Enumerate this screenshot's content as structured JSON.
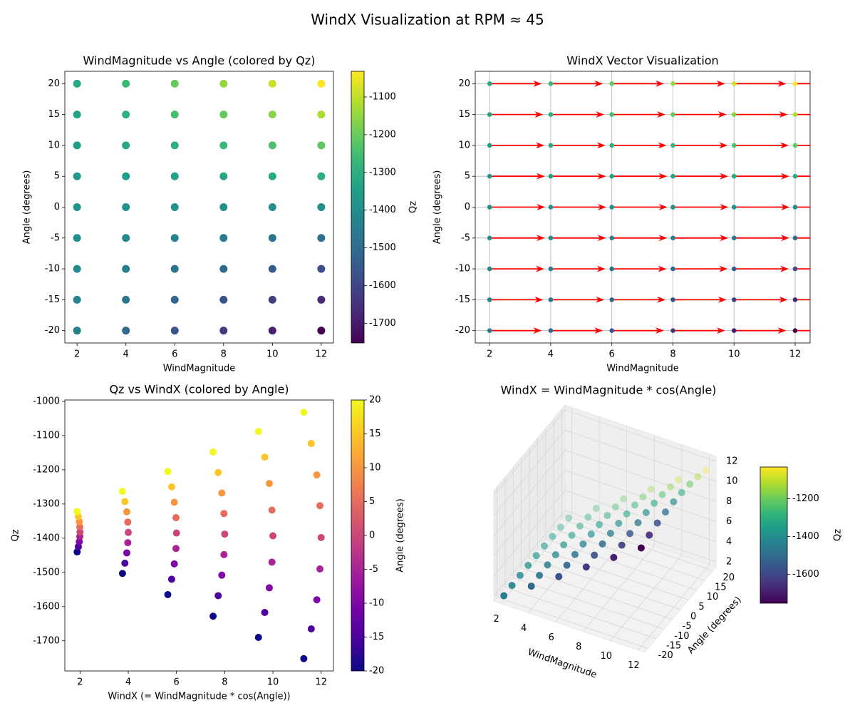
{
  "title": "WindX Visualization at RPM ≈ 45",
  "chart_data": [
    {
      "type": "scatter",
      "title": "WindMagnitude vs Angle (colored by Qz)",
      "xlabel": "WindMagnitude",
      "ylabel": "Angle (degrees)",
      "magnitudes": [
        2,
        4,
        6,
        8,
        10,
        12
      ],
      "angles": [
        -20,
        -15,
        -10,
        -5,
        0,
        5,
        10,
        15,
        20
      ],
      "qz": [
        [
          -1440,
          -1425,
          -1410,
          -1395,
          -1382,
          -1367,
          -1352,
          -1337,
          -1322
        ],
        [
          -1503,
          -1473,
          -1443,
          -1413,
          -1383,
          -1353,
          -1323,
          -1293,
          -1263
        ],
        [
          -1565,
          -1520,
          -1475,
          -1430,
          -1385,
          -1340,
          -1295,
          -1250,
          -1205
        ],
        [
          -1628,
          -1568,
          -1508,
          -1448,
          -1388,
          -1328,
          -1268,
          -1208,
          -1148
        ],
        [
          -1690,
          -1617,
          -1545,
          -1470,
          -1393,
          -1318,
          -1240,
          -1163,
          -1088
        ],
        [
          -1752,
          -1665,
          -1580,
          -1490,
          -1398,
          -1305,
          -1215,
          -1123,
          -1032
        ]
      ],
      "cmap": "viridis",
      "clim": [
        -1752,
        -1032
      ],
      "cticks": [
        -1700,
        -1600,
        -1500,
        -1400,
        -1300,
        -1200,
        -1100
      ],
      "colorbar_label": "Qz",
      "xlim": [
        1.5,
        12.5
      ],
      "xticks": [
        2,
        4,
        6,
        8,
        10,
        12
      ],
      "ylim": [
        -22,
        22
      ],
      "yticks": [
        -20,
        -15,
        -10,
        -5,
        0,
        5,
        10,
        15,
        20
      ]
    },
    {
      "type": "quiver",
      "title": "WindX Vector Visualization",
      "xlabel": "WindMagnitude",
      "ylabel": "Angle (degrees)",
      "magnitudes": [
        2,
        4,
        6,
        8,
        10,
        12
      ],
      "angles": [
        -20,
        -15,
        -10,
        -5,
        0,
        5,
        10,
        15,
        20
      ],
      "windx": [
        [
          1.88,
          1.93,
          1.97,
          1.99,
          2,
          1.99,
          1.97,
          1.93,
          1.88
        ],
        [
          3.76,
          3.86,
          3.94,
          3.98,
          4,
          3.98,
          3.94,
          3.86,
          3.76
        ],
        [
          5.64,
          5.8,
          5.91,
          5.98,
          6,
          5.98,
          5.91,
          5.8,
          5.64
        ],
        [
          7.52,
          7.73,
          7.88,
          7.97,
          8,
          7.97,
          7.88,
          7.73,
          7.52
        ],
        [
          9.4,
          9.66,
          9.85,
          9.96,
          10,
          9.96,
          9.85,
          9.66,
          9.4
        ],
        [
          11.28,
          11.59,
          11.82,
          11.95,
          12,
          11.95,
          11.82,
          11.59,
          11.28
        ]
      ],
      "qz": [
        [
          -1440,
          -1425,
          -1410,
          -1395,
          -1382,
          -1367,
          -1352,
          -1337,
          -1322
        ],
        [
          -1503,
          -1473,
          -1443,
          -1413,
          -1383,
          -1353,
          -1323,
          -1293,
          -1263
        ],
        [
          -1565,
          -1520,
          -1475,
          -1430,
          -1385,
          -1340,
          -1295,
          -1250,
          -1205
        ],
        [
          -1628,
          -1568,
          -1508,
          -1448,
          -1388,
          -1328,
          -1268,
          -1208,
          -1148
        ],
        [
          -1690,
          -1617,
          -1545,
          -1470,
          -1393,
          -1318,
          -1240,
          -1163,
          -1088
        ],
        [
          -1752,
          -1665,
          -1580,
          -1490,
          -1398,
          -1305,
          -1215,
          -1123,
          -1032
        ]
      ],
      "cmap": "viridis",
      "clim": [
        -1752,
        -1032
      ],
      "arrow_color": "#ff0000",
      "grid": true,
      "xlim": [
        1.53,
        12.49
      ],
      "xticks": [
        2,
        4,
        6,
        8,
        10,
        12
      ],
      "ylim": [
        -22,
        22
      ],
      "yticks": [
        -20,
        -15,
        -10,
        -5,
        0,
        5,
        10,
        15,
        20
      ]
    },
    {
      "type": "scatter",
      "title": "Qz vs WindX (colored by Angle)",
      "xlabel": "WindX (= WindMagnitude * cos(Angle))",
      "ylabel": "Qz",
      "angles": [
        -20,
        -15,
        -10,
        -5,
        0,
        5,
        10,
        15,
        20
      ],
      "windx": [
        [
          1.88,
          1.93,
          1.97,
          1.99,
          2,
          1.99,
          1.97,
          1.93,
          1.88
        ],
        [
          3.76,
          3.86,
          3.94,
          3.98,
          4,
          3.98,
          3.94,
          3.86,
          3.76
        ],
        [
          5.64,
          5.8,
          5.91,
          5.98,
          6,
          5.98,
          5.91,
          5.8,
          5.64
        ],
        [
          7.52,
          7.73,
          7.88,
          7.97,
          8,
          7.97,
          7.88,
          7.73,
          7.52
        ],
        [
          9.4,
          9.66,
          9.85,
          9.96,
          10,
          9.96,
          9.85,
          9.66,
          9.4
        ],
        [
          11.28,
          11.59,
          11.82,
          11.95,
          12,
          11.95,
          11.82,
          11.59,
          11.28
        ]
      ],
      "qz": [
        [
          -1440,
          -1425,
          -1410,
          -1395,
          -1382,
          -1367,
          -1352,
          -1337,
          -1322
        ],
        [
          -1503,
          -1473,
          -1443,
          -1413,
          -1383,
          -1353,
          -1323,
          -1293,
          -1263
        ],
        [
          -1565,
          -1520,
          -1475,
          -1430,
          -1385,
          -1340,
          -1295,
          -1250,
          -1205
        ],
        [
          -1628,
          -1568,
          -1508,
          -1448,
          -1388,
          -1328,
          -1268,
          -1208,
          -1148
        ],
        [
          -1690,
          -1617,
          -1545,
          -1470,
          -1393,
          -1318,
          -1240,
          -1163,
          -1088
        ],
        [
          -1752,
          -1665,
          -1580,
          -1490,
          -1398,
          -1305,
          -1215,
          -1123,
          -1032
        ]
      ],
      "cmap": "plasma",
      "clim": [
        -20,
        20
      ],
      "cticks": [
        -20,
        -15,
        -10,
        -5,
        0,
        5,
        10,
        15,
        20
      ],
      "colorbar_label": "Angle (degrees)",
      "xlim": [
        1.37,
        12.51
      ],
      "xticks": [
        2,
        4,
        6,
        8,
        10,
        12
      ],
      "ylim": [
        -1788,
        -996
      ],
      "yticks": [
        -1700,
        -1600,
        -1500,
        -1400,
        -1300,
        -1200,
        -1100,
        -1000
      ]
    },
    {
      "type": "scatter3d",
      "title": "WindX = WindMagnitude * cos(Angle)",
      "xlabel": "WindMagnitude",
      "ylabel": "Angle (degrees)",
      "magnitudes": [
        2,
        4,
        6,
        8,
        10,
        12
      ],
      "angles": [
        -20,
        -15,
        -10,
        -5,
        0,
        5,
        10,
        15,
        20
      ],
      "windx": [
        [
          1.88,
          1.93,
          1.97,
          1.99,
          2,
          1.99,
          1.97,
          1.93,
          1.88
        ],
        [
          3.76,
          3.86,
          3.94,
          3.98,
          4,
          3.98,
          3.94,
          3.86,
          3.76
        ],
        [
          5.64,
          5.8,
          5.91,
          5.98,
          6,
          5.98,
          5.91,
          5.8,
          5.64
        ],
        [
          7.52,
          7.73,
          7.88,
          7.97,
          8,
          7.97,
          7.88,
          7.73,
          7.52
        ],
        [
          9.4,
          9.66,
          9.85,
          9.96,
          10,
          9.96,
          9.85,
          9.66,
          9.4
        ],
        [
          11.28,
          11.59,
          11.82,
          11.95,
          12,
          11.95,
          11.82,
          11.59,
          11.28
        ]
      ],
      "qz": [
        [
          -1440,
          -1425,
          -1410,
          -1395,
          -1382,
          -1367,
          -1352,
          -1337,
          -1322
        ],
        [
          -1503,
          -1473,
          -1443,
          -1413,
          -1383,
          -1353,
          -1323,
          -1293,
          -1263
        ],
        [
          -1565,
          -1520,
          -1475,
          -1430,
          -1385,
          -1340,
          -1295,
          -1250,
          -1205
        ],
        [
          -1628,
          -1568,
          -1508,
          -1448,
          -1388,
          -1328,
          -1268,
          -1208,
          -1148
        ],
        [
          -1690,
          -1617,
          -1545,
          -1470,
          -1393,
          -1318,
          -1240,
          -1163,
          -1088
        ],
        [
          -1752,
          -1665,
          -1580,
          -1490,
          -1398,
          -1305,
          -1215,
          -1123,
          -1032
        ]
      ],
      "cmap": "viridis",
      "clim": [
        -1752,
        -1032
      ],
      "cticks": [
        -1600,
        -1400,
        -1200
      ],
      "colorbar_label": "Qz",
      "xlim": [
        1.5,
        12.5
      ],
      "xticks": [
        2,
        4,
        6,
        8,
        10,
        12
      ],
      "ylim": [
        -22,
        22
      ],
      "yticks": [
        -20,
        -15,
        -10,
        -5,
        0,
        5,
        10,
        15,
        20
      ],
      "zlim": [
        1.5,
        12.5
      ],
      "zticks": [
        2,
        4,
        6,
        8,
        10,
        12
      ]
    }
  ]
}
